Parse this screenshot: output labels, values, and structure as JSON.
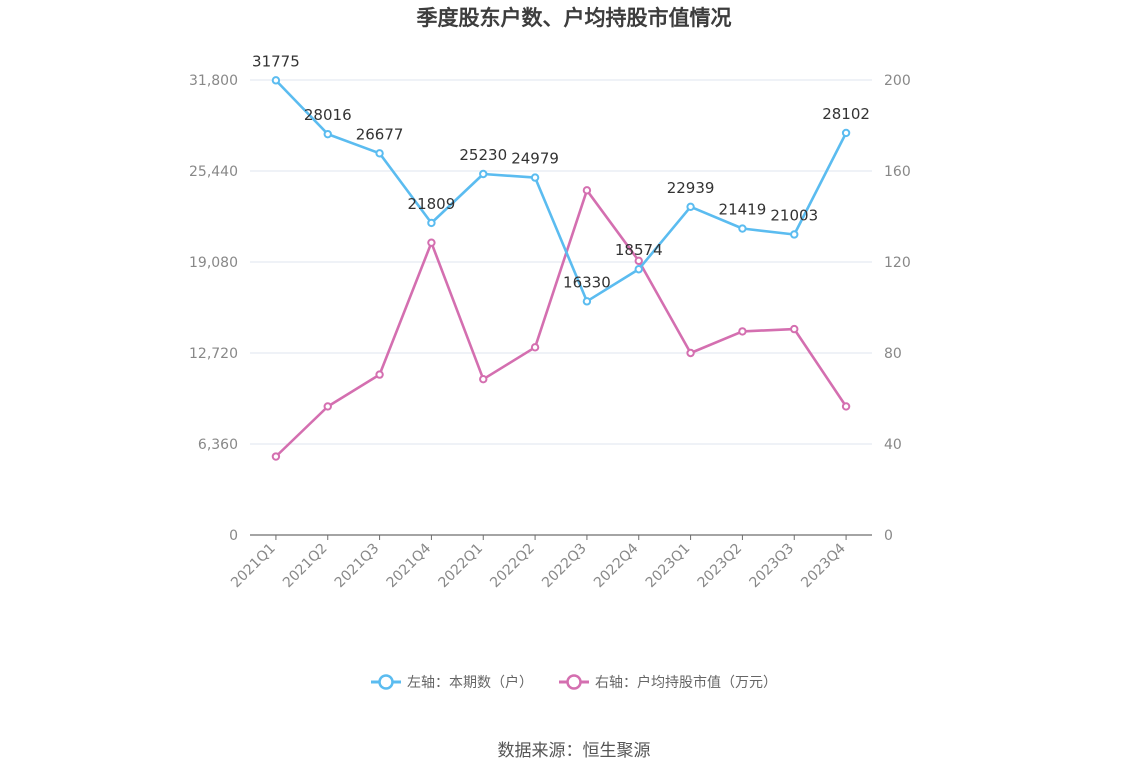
{
  "chart_data": {
    "type": "line",
    "title": "季度股东户数、户均持股市值情况",
    "categories": [
      "2021Q1",
      "2021Q2",
      "2021Q3",
      "2021Q4",
      "2022Q1",
      "2022Q2",
      "2022Q3",
      "2022Q4",
      "2023Q1",
      "2023Q2",
      "2023Q3",
      "2023Q4"
    ],
    "series": [
      {
        "name": "左轴：本期数（户）",
        "axis": "left",
        "color": "#5bbcf0",
        "values": [
          31775,
          28016,
          26677,
          21809,
          25230,
          24979,
          16330,
          18574,
          22939,
          21419,
          21003,
          28102
        ],
        "labels": [
          "31775",
          "28016",
          "26677",
          "21809",
          "25230",
          "24979",
          "16330",
          "18574",
          "22939",
          "21419",
          "21003",
          "28102"
        ]
      },
      {
        "name": "右轴：户均持股市值（万元）",
        "axis": "right",
        "color": "#d46fb0",
        "values": [
          34.5,
          56.5,
          70.5,
          128.5,
          68.5,
          82.5,
          151.5,
          120.5,
          80,
          89.5,
          90.5,
          56.5
        ]
      }
    ],
    "left_axis": {
      "ylim": [
        0,
        31800
      ],
      "tick_labels": [
        "0",
        "6,360",
        "12,720",
        "19,080",
        "25,440",
        "31,800"
      ]
    },
    "right_axis": {
      "ylim": [
        0,
        200
      ],
      "tick_labels": [
        "0",
        "40",
        "80",
        "120",
        "160",
        "200"
      ]
    },
    "grid": true,
    "legend_position": "bottom",
    "source": "数据来源：恒生聚源"
  }
}
